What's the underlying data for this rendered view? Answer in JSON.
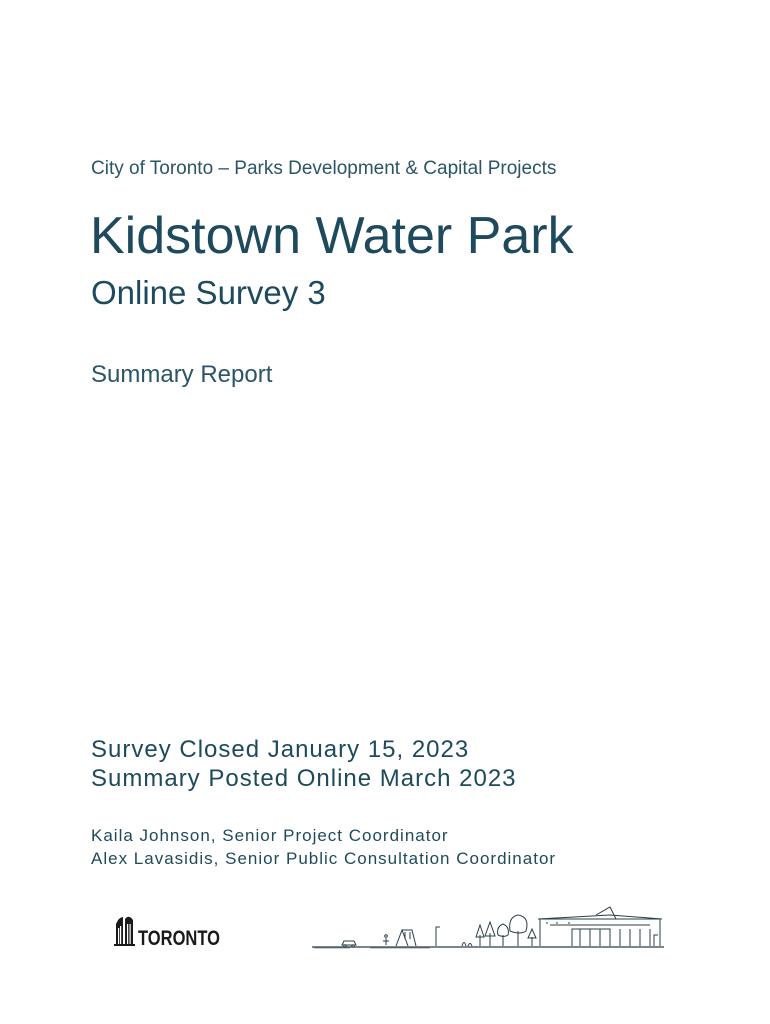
{
  "header": {
    "organization": "City of Toronto – Parks Development & Capital Projects"
  },
  "title": {
    "main": "Kidstown Water Park",
    "survey": "Online Survey 3",
    "report_type": "Summary Report"
  },
  "dates": {
    "closed": "Survey Closed January 15, 2023",
    "posted": "Summary Posted Online March 2023"
  },
  "authors": [
    "Kaila Johnson, Senior Project Coordinator",
    "Alex Lavasidis, Senior Public Consultation Coordinator"
  ],
  "logo": {
    "text": "TORONTO",
    "icon": "city-hall-icon"
  },
  "illustration": {
    "icon": "park-sketch-icon"
  },
  "colors": {
    "text_primary": "#1d4a5c",
    "text_secondary": "#2a5566"
  }
}
